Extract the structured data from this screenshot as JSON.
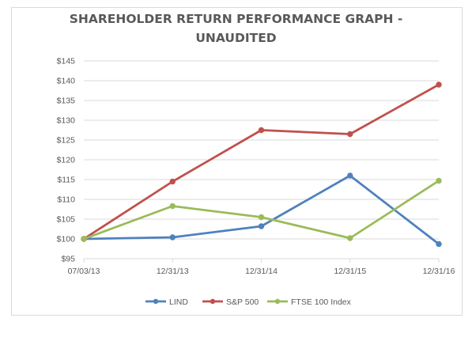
{
  "chart_data": {
    "type": "line",
    "title": [
      "SHAREHOLDER RETURN PERFORMANCE GRAPH -",
      "UNAUDITED"
    ],
    "xlabel": "",
    "ylabel": "",
    "categories": [
      "07/03/13",
      "12/31/13",
      "12/31/14",
      "12/31/15",
      "12/31/16"
    ],
    "ylim": [
      95,
      145
    ],
    "yticks": [
      95,
      100,
      105,
      110,
      115,
      120,
      125,
      130,
      135,
      140,
      145
    ],
    "ytick_labels": [
      "$95",
      "$100",
      "$105",
      "$110",
      "$115",
      "$120",
      "$125",
      "$130",
      "$135",
      "$140",
      "$145"
    ],
    "grid": "horizontal",
    "legend_position": "bottom",
    "series": [
      {
        "name": "LIND",
        "color": "#4f81bd",
        "values": [
          100,
          100.4,
          103.2,
          116,
          98.7
        ]
      },
      {
        "name": "S&P 500",
        "color": "#c0504d",
        "values": [
          100,
          114.5,
          127.5,
          126.5,
          139
        ]
      },
      {
        "name": "FTSE 100 Index",
        "color": "#9bbb59",
        "values": [
          100,
          108.3,
          105.5,
          100.2,
          114.7
        ]
      }
    ]
  }
}
